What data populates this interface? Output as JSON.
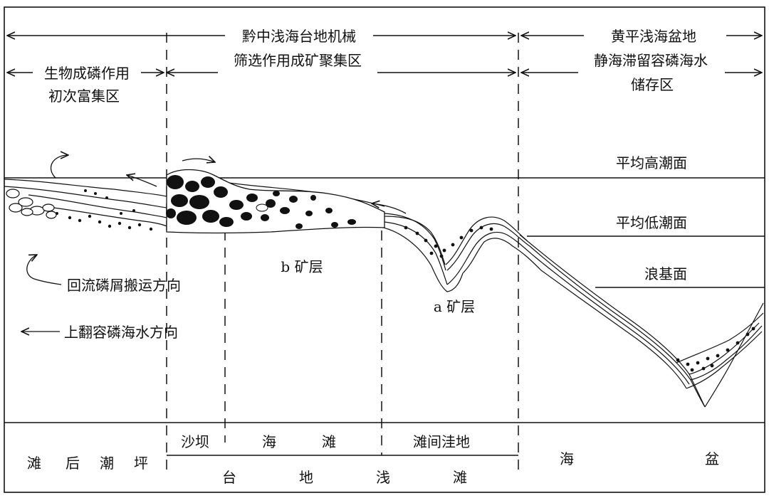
{
  "zones": {
    "qianzhong_line1": "黔中浅海台地机械",
    "qianzhong_line2": "筛选作用成矿聚集区",
    "huangping_line1": "黄平浅海盆地",
    "huangping_line2": "静海滞留容磷海水",
    "huangping_line3": "储存区",
    "bio_line1": "生物成磷作用",
    "bio_line2": "初次富集区"
  },
  "levels": {
    "high_tide": "平均高潮面",
    "low_tide": "平均低潮面",
    "wave_base": "浪基面"
  },
  "ore_layers": {
    "b": "b 矿层",
    "a": "a 矿层"
  },
  "legend": {
    "return_flow": "回流磷屑搬运方向",
    "upwelling": "上翻容磷海水方向"
  },
  "bottom": {
    "tidal_flat": [
      "滩",
      "后",
      "潮",
      "坪"
    ],
    "sand_bar": "沙坝",
    "shoal": [
      "海",
      "滩"
    ],
    "inter_shoal": "滩间洼地",
    "platform": [
      "台",
      "地",
      "浅",
      "滩"
    ],
    "basin": [
      "海",
      "盆"
    ]
  }
}
